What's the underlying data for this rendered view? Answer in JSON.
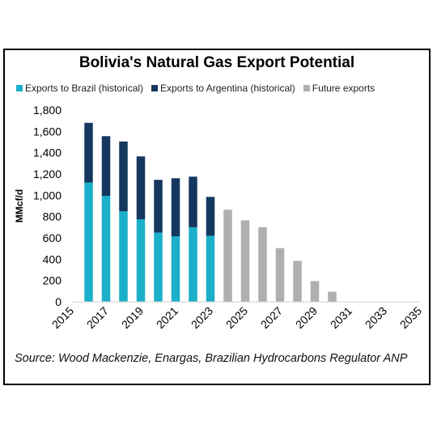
{
  "chart_data": {
    "type": "bar",
    "stacked": true,
    "title": "Bolivia's Natural Gas Export Potential",
    "ylabel": "MMcf/d",
    "xlabel": "",
    "ylim": [
      0,
      1800
    ],
    "y_ticks": [
      "0",
      "200",
      "400",
      "600",
      "800",
      "1,000",
      "1,200",
      "1,400",
      "1,600",
      "1,800"
    ],
    "y_tick_values": [
      0,
      200,
      400,
      600,
      800,
      1000,
      1200,
      1400,
      1600,
      1800
    ],
    "x_tick_labels": [
      "2015",
      "2017",
      "2019",
      "2021",
      "2023",
      "2025",
      "2027",
      "2029",
      "2031",
      "2033",
      "2035"
    ],
    "categories": [
      "2016",
      "2017",
      "2018",
      "2019",
      "2020",
      "2021",
      "2022",
      "2023",
      "2024",
      "2025",
      "2026",
      "2027",
      "2028",
      "2029",
      "2030",
      "2031",
      "2032",
      "2033",
      "2034",
      "2035"
    ],
    "series": [
      {
        "name": "Exports to Brazil (historical)",
        "color": "#1bafc9",
        "values": [
          1120,
          995,
          850,
          775,
          650,
          615,
          700,
          620,
          0,
          0,
          0,
          0,
          0,
          0,
          0,
          0,
          0,
          0,
          0,
          0
        ]
      },
      {
        "name": "Exports to Argentina (historical)",
        "color": "#14385f",
        "values": [
          560,
          560,
          655,
          590,
          495,
          545,
          475,
          365,
          0,
          0,
          0,
          0,
          0,
          0,
          0,
          0,
          0,
          0,
          0,
          0
        ]
      },
      {
        "name": "Future exports",
        "color": "#afafaf",
        "values": [
          0,
          0,
          0,
          0,
          0,
          0,
          0,
          0,
          865,
          765,
          700,
          505,
          385,
          195,
          95,
          0,
          0,
          0,
          0,
          0
        ]
      }
    ],
    "legend_position": "top",
    "grid": false
  },
  "source_text": "Source: Wood Mackenzie, Enargas, Brazilian Hydrocarbons Regulator ANP"
}
